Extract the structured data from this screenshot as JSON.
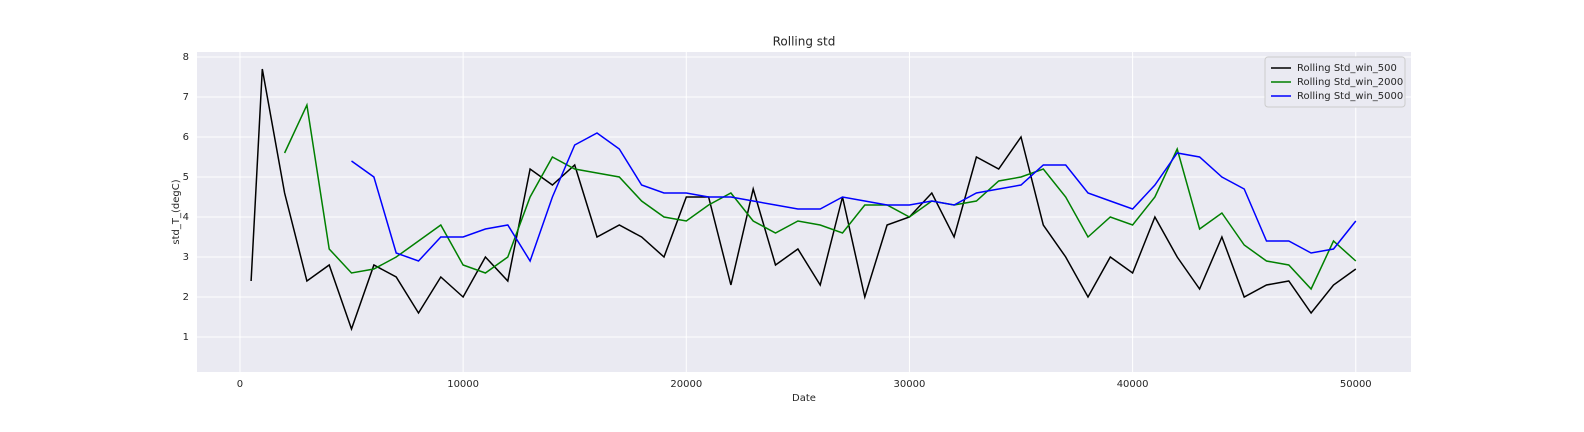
{
  "chart_data": {
    "type": "line",
    "title": "Rolling std",
    "x_label": "Date",
    "y_label": "std_T_(degC)",
    "x": [
      500,
      1000,
      2000,
      3000,
      4000,
      5000,
      6000,
      7000,
      8000,
      9000,
      10000,
      11000,
      12000,
      13000,
      14000,
      15000,
      16000,
      17000,
      18000,
      19000,
      20000,
      21000,
      22000,
      23000,
      24000,
      25000,
      26000,
      27000,
      28000,
      29000,
      30000,
      31000,
      32000,
      33000,
      34000,
      35000,
      36000,
      37000,
      38000,
      39000,
      40000,
      41000,
      42000,
      43000,
      44000,
      45000,
      46000,
      47000,
      48000,
      49000,
      50000
    ],
    "series": [
      {
        "name": "Rolling Std_win_500",
        "color": "#000000",
        "values": [
          2.4,
          7.7,
          4.6,
          2.4,
          2.8,
          1.2,
          2.8,
          2.5,
          1.6,
          2.5,
          2.0,
          3.0,
          2.4,
          5.2,
          4.8,
          5.3,
          3.5,
          3.8,
          3.5,
          3.0,
          4.5,
          4.5,
          2.3,
          4.7,
          2.8,
          3.2,
          2.3,
          4.5,
          2.0,
          3.8,
          4.0,
          4.6,
          3.5,
          5.5,
          5.2,
          6.0,
          3.8,
          3.0,
          2.0,
          3.0,
          2.6,
          4.0,
          3.0,
          2.2,
          3.5,
          2.0,
          2.3,
          2.4,
          1.6,
          2.3,
          2.7
        ]
      },
      {
        "name": "Rolling Std_win_2000",
        "color": "#008000",
        "values": [
          null,
          null,
          5.6,
          6.8,
          3.2,
          2.6,
          2.7,
          3.0,
          3.4,
          3.8,
          2.8,
          2.6,
          3.0,
          4.5,
          5.5,
          5.2,
          5.1,
          5.0,
          4.4,
          4.0,
          3.9,
          4.3,
          4.6,
          3.9,
          3.6,
          3.9,
          3.8,
          3.6,
          4.3,
          4.3,
          4.0,
          4.4,
          4.3,
          4.4,
          4.9,
          5.0,
          5.2,
          4.5,
          3.5,
          4.0,
          3.8,
          4.5,
          5.7,
          3.7,
          4.1,
          3.3,
          2.9,
          2.8,
          2.2,
          3.4,
          2.9
        ]
      },
      {
        "name": "Rolling Std_win_5000",
        "color": "#0000ff",
        "values": [
          null,
          null,
          null,
          null,
          null,
          5.4,
          5.0,
          3.1,
          2.9,
          3.5,
          3.5,
          3.7,
          3.8,
          2.9,
          4.5,
          5.8,
          6.1,
          5.7,
          4.8,
          4.6,
          4.6,
          4.5,
          4.5,
          4.4,
          4.3,
          4.2,
          4.2,
          4.5,
          4.4,
          4.3,
          4.3,
          4.4,
          4.3,
          4.6,
          4.7,
          4.8,
          5.3,
          5.3,
          4.6,
          4.4,
          4.2,
          4.8,
          5.6,
          5.5,
          5.0,
          4.7,
          3.4,
          3.4,
          3.1,
          3.2,
          3.9
        ]
      }
    ],
    "xlim": [
      -1925,
      52475
    ],
    "xticks": [
      0,
      10000,
      20000,
      30000,
      40000,
      50000
    ],
    "ylim": [
      0.125,
      8.125
    ],
    "yticks": [
      1,
      2,
      3,
      4,
      5,
      6,
      7,
      8
    ],
    "grid": true,
    "legend": "upper right",
    "background": "#eaeaf2"
  }
}
